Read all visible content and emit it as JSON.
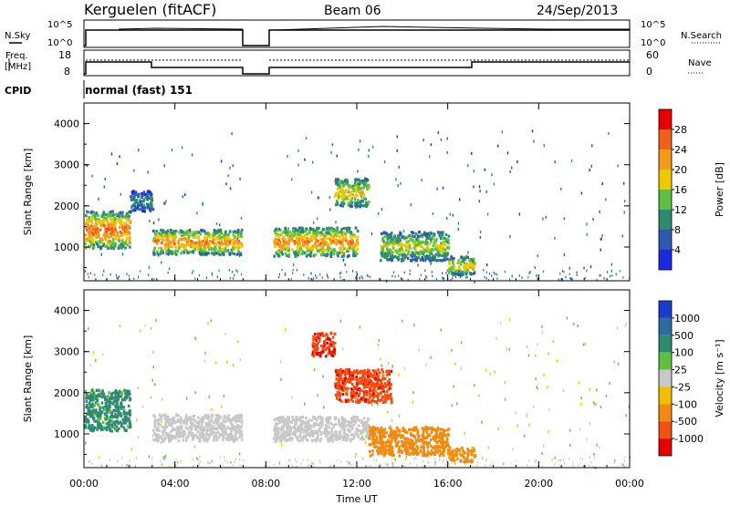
{
  "header": {
    "station": "Kerguelen (fitACF)",
    "beam": "Beam 06",
    "date": "24/Sep/2013"
  },
  "status_panels": {
    "nsky_label": "N.Sky",
    "nsearch_label": "N.Search",
    "freq_label_line1": "Freq.",
    "freq_label_line2": "[MHz]",
    "nave_label": "Nave",
    "cpid_label": "CPID",
    "cpid_value": "normal (fast) 151",
    "noise_ticks": [
      "10^5",
      "10^0"
    ],
    "freq_ticks": [
      "18",
      "8"
    ],
    "nave_ticks": [
      "60",
      "0"
    ]
  },
  "chart_data": [
    {
      "type": "heatmap",
      "panel": "power",
      "xlabel": "Time UT",
      "ylabel": "Slant Range [km]",
      "x_ticks": [
        "00:00",
        "04:00",
        "08:00",
        "12:00",
        "16:00",
        "20:00",
        "00:00"
      ],
      "y_ticks": [
        1000,
        2000,
        3000,
        4000
      ],
      "xlim_hours": [
        0,
        24
      ],
      "ylim_km": [
        180,
        4500
      ],
      "colorbar_label": "Power [dB]",
      "colorbar_ticks": [
        "4",
        "8",
        "12",
        "16",
        "20",
        "24",
        "28"
      ],
      "colorbar_colors": [
        "#1a2ae0",
        "#2e59b0",
        "#2f8a70",
        "#5fbf40",
        "#f0c800",
        "#f29a1a",
        "#f0601a",
        "#e60000"
      ],
      "data_gap_hours": [
        7.0,
        8.3
      ],
      "features": [
        {
          "t0": 0.0,
          "t1": 2.0,
          "r0": 1000,
          "r1": 1900,
          "power_db": 26
        },
        {
          "t0": 2.0,
          "t1": 3.0,
          "r0": 1900,
          "r1": 2400,
          "power_db": 10
        },
        {
          "t0": 3.0,
          "t1": 7.0,
          "r0": 850,
          "r1": 1450,
          "power_db": 24
        },
        {
          "t0": 8.3,
          "t1": 12.0,
          "r0": 800,
          "r1": 1500,
          "power_db": 24
        },
        {
          "t0": 11.0,
          "t1": 12.5,
          "r0": 2000,
          "r1": 2700,
          "power_db": 20
        },
        {
          "t0": 13.0,
          "t1": 16.0,
          "r0": 700,
          "r1": 1400,
          "power_db": 18
        },
        {
          "t0": 16.0,
          "t1": 17.2,
          "r0": 350,
          "r1": 800,
          "power_db": 20
        }
      ]
    },
    {
      "type": "heatmap",
      "panel": "velocity",
      "xlabel": "Time UT",
      "ylabel": "Slant Range [km]",
      "x_ticks": [
        "00:00",
        "04:00",
        "08:00",
        "12:00",
        "16:00",
        "20:00",
        "00:00"
      ],
      "y_ticks": [
        1000,
        2000,
        3000,
        4000
      ],
      "xlim_hours": [
        0,
        24
      ],
      "ylim_km": [
        180,
        4500
      ],
      "colorbar_label": "Velocity [m s⁻¹]",
      "colorbar_ticks": [
        "1000",
        "500",
        "100",
        "25",
        "-25",
        "-100",
        "-500",
        "-1000"
      ],
      "colorbar_colors": [
        "#1a3cc8",
        "#2f6aa0",
        "#2f8a70",
        "#60c040",
        "#c8c8c8",
        "#f0c000",
        "#f08a10",
        "#f05010",
        "#e60000"
      ],
      "data_gap_hours": [
        7.0,
        8.3
      ],
      "features": [
        {
          "t0": 0.0,
          "t1": 2.0,
          "r0": 1100,
          "r1": 2100,
          "velocity": 150
        },
        {
          "t0": 3.0,
          "t1": 7.0,
          "r0": 850,
          "r1": 1500,
          "velocity": 0
        },
        {
          "t0": 8.3,
          "t1": 12.5,
          "r0": 850,
          "r1": 1450,
          "velocity": 0
        },
        {
          "t0": 10.0,
          "t1": 11.0,
          "r0": 2900,
          "r1": 3500,
          "velocity": -900
        },
        {
          "t0": 11.0,
          "t1": 13.5,
          "r0": 1800,
          "r1": 2600,
          "velocity": -800
        },
        {
          "t0": 12.5,
          "t1": 16.0,
          "r0": 500,
          "r1": 1200,
          "velocity": -300
        },
        {
          "t0": 16.0,
          "t1": 17.2,
          "r0": 350,
          "r1": 700,
          "velocity": -150
        }
      ]
    }
  ]
}
